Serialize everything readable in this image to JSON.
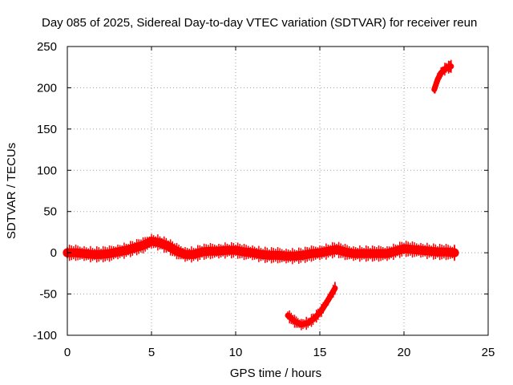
{
  "chart_data": {
    "type": "line",
    "title": "Day 085 of 2025, Sidereal Day-to-day VTEC variation (SDTVAR) for receiver reun",
    "xlabel": "GPS time / hours",
    "ylabel": "SDTVAR / TECUs",
    "xlim": [
      0,
      25
    ],
    "ylim": [
      -100,
      250
    ],
    "xticks": [
      0,
      5,
      10,
      15,
      20,
      25
    ],
    "yticks": [
      -100,
      -50,
      0,
      50,
      100,
      150,
      200,
      250
    ],
    "grid": true,
    "legend": "none",
    "series": [
      {
        "name": "main-band",
        "color": "#ff0000",
        "spread": 4,
        "x": [
          0.0,
          0.5,
          1.0,
          1.5,
          2.0,
          2.5,
          3.0,
          3.5,
          4.0,
          4.5,
          5.0,
          5.5,
          6.0,
          6.5,
          7.0,
          7.5,
          8.0,
          8.5,
          9.0,
          9.5,
          10.0,
          10.5,
          11.0,
          11.5,
          12.0,
          12.5,
          13.0,
          13.5,
          14.0,
          14.5,
          15.0,
          15.5,
          16.0,
          16.5,
          17.0,
          17.5,
          18.0,
          18.5,
          19.0,
          19.5,
          20.0,
          20.5,
          21.0,
          21.5,
          22.0,
          22.5,
          23.0
        ],
        "y": [
          0,
          0,
          -1,
          -2,
          -2,
          -1,
          1,
          3,
          6,
          9,
          14,
          12,
          8,
          2,
          -2,
          -2,
          1,
          2,
          2,
          3,
          3,
          1,
          0,
          -2,
          -3,
          -3,
          -4,
          -4,
          -3,
          -1,
          0,
          2,
          4,
          1,
          -1,
          -1,
          -1,
          -1,
          -1,
          2,
          5,
          4,
          3,
          2,
          1,
          1,
          0
        ]
      },
      {
        "name": "dip-arc",
        "color": "#ff0000",
        "spread": 2,
        "x": [
          13.1,
          13.5,
          13.9,
          14.3,
          14.7,
          15.1,
          15.5,
          15.9
        ],
        "y": [
          -76,
          -83,
          -87,
          -85,
          -79,
          -70,
          -57,
          -43
        ]
      },
      {
        "name": "late-arc",
        "color": "#ff0000",
        "spread": 2,
        "x": [
          21.8,
          22.0,
          22.2,
          22.5,
          22.8
        ],
        "y": [
          198,
          210,
          218,
          224,
          226
        ]
      }
    ]
  }
}
